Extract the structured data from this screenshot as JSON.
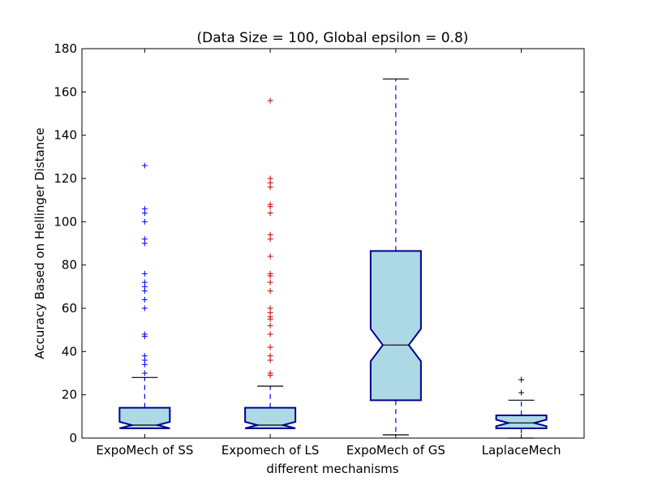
{
  "chart_data": {
    "type": "box",
    "title": "(Data Size = 100, Global epsilon = 0.8)",
    "xlabel": "different mechanisms",
    "ylabel": "Accuracy Based on Hellinger Distance",
    "ylim": [
      0,
      180
    ],
    "yticks": [
      0,
      20,
      40,
      60,
      80,
      100,
      120,
      140,
      160,
      180
    ],
    "notched": true,
    "grid": false,
    "categories": [
      "ExpoMech of SS",
      "Expomech of LS",
      "ExpoMech of GS",
      "LaplaceMech"
    ],
    "boxes": [
      {
        "whisker_low": 4.5,
        "q1": 4.5,
        "median": 6,
        "q3": 14,
        "whisker_high": 28,
        "notch_low": 4.5,
        "notch_high": 7.5,
        "outliers": [
          126,
          106,
          104,
          100,
          92,
          90,
          76,
          72,
          70,
          68,
          64,
          60,
          48,
          47,
          38,
          36,
          34,
          30
        ],
        "outlier_color": "#0000ff"
      },
      {
        "whisker_low": 4.5,
        "q1": 4.5,
        "median": 6,
        "q3": 14,
        "whisker_high": 24,
        "notch_low": 4.5,
        "notch_high": 7.5,
        "outliers": [
          156,
          120,
          118,
          116,
          108,
          107,
          104,
          94,
          92,
          84,
          76,
          75,
          72,
          68,
          60,
          58,
          56,
          55,
          52,
          48,
          42,
          38,
          36,
          30,
          29
        ],
        "outlier_color": "#cc0000"
      },
      {
        "whisker_low": 1.5,
        "q1": 17.5,
        "median": 43,
        "q3": 86.5,
        "whisker_high": 166,
        "notch_low": 35.5,
        "notch_high": 50.5,
        "outliers": [],
        "outlier_color": "#000000"
      },
      {
        "whisker_low": 0,
        "q1": 4.5,
        "median": 7,
        "q3": 10.5,
        "whisker_high": 17.5,
        "notch_low": 5.5,
        "notch_high": 8.5,
        "outliers": [
          27,
          21
        ],
        "outlier_color": "#000000"
      }
    ],
    "colors": {
      "box_fill": "#add8e6",
      "box_edge": "#00008b",
      "whisker": "#0000ff",
      "cap": "#000000",
      "median": "#000000"
    }
  }
}
